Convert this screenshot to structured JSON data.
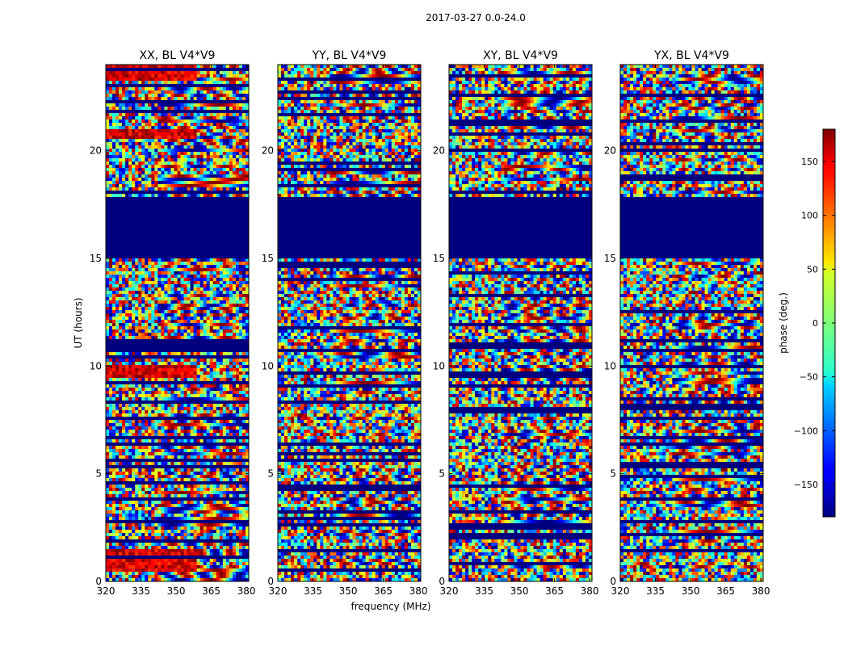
{
  "figure": {
    "suptitle": "2017-03-27 0.0-24.0",
    "xlabel": "frequency (MHz)",
    "ylabel": "UT (hours)"
  },
  "colors": {
    "background": "#ffffff",
    "axes_edge": "#000000",
    "flagged": "#00007f",
    "colormap": "jet"
  },
  "chart_data": {
    "type": "heatmap",
    "title": "2017-03-27 0.0-24.0",
    "xlabel": "frequency (MHz)",
    "ylabel": "UT (hours)",
    "xlim": [
      320,
      381
    ],
    "ylim": [
      0,
      24
    ],
    "x_ticks": [
      320,
      335,
      350,
      365,
      380
    ],
    "y_ticks": [
      0,
      5,
      10,
      15,
      20
    ],
    "panels": [
      {
        "title": "XX, BL V4*V9",
        "redband_hours": [
          [
            9.5,
            10.0
          ],
          [
            0.5,
            1.5
          ],
          [
            20.6,
            21.0
          ],
          [
            23.2,
            24.0
          ]
        ]
      },
      {
        "title": "YY, BL V4*V9",
        "redband_hours": []
      },
      {
        "title": "XY, BL V4*V9",
        "redband_hours": []
      },
      {
        "title": "YX, BL V4*V9",
        "redband_hours": []
      }
    ],
    "flagged_hours": [
      [
        15.0,
        17.8
      ]
    ],
    "colorbar": {
      "label": "phase (deg.)",
      "range": [
        -180,
        180
      ],
      "ticks": [
        150,
        100,
        50,
        0,
        -50,
        -100,
        -150
      ],
      "tick_labels": [
        "150",
        "100",
        "50",
        "0",
        "−50",
        "−100",
        "−150"
      ]
    }
  }
}
